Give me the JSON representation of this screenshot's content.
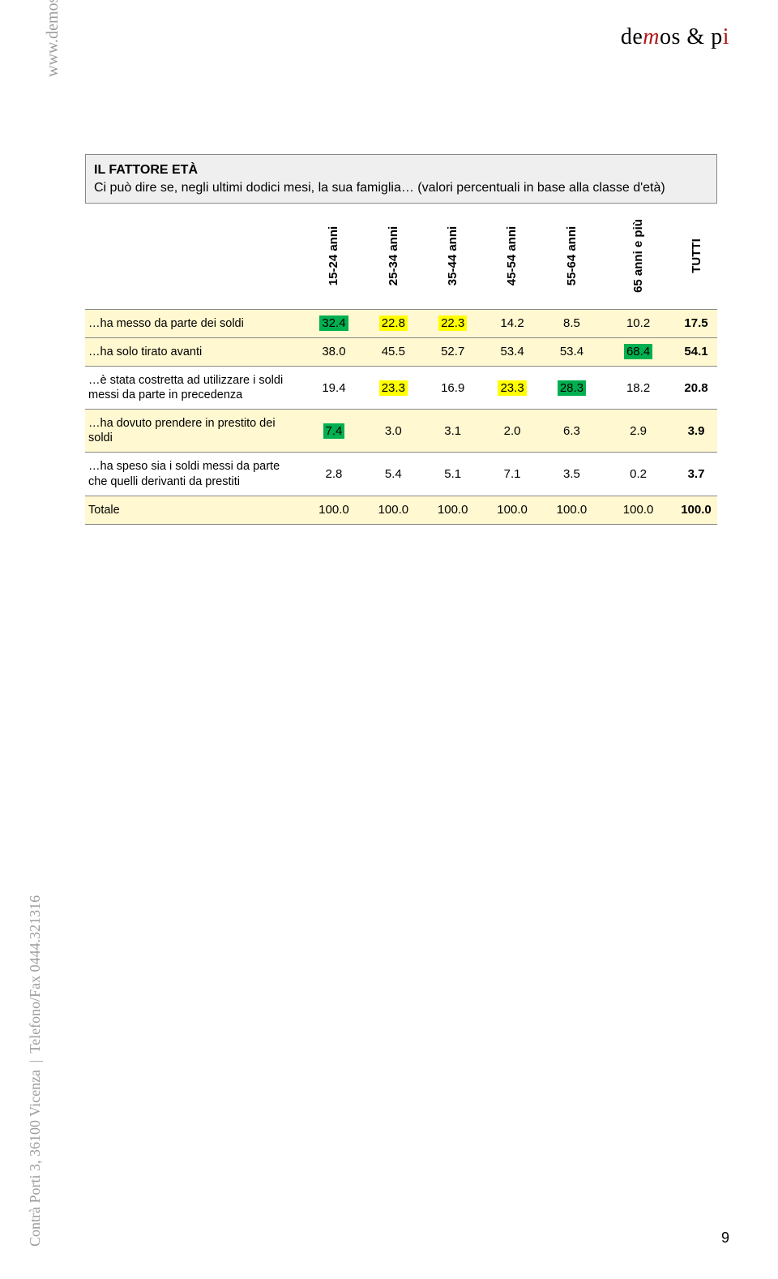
{
  "logo": {
    "text_pre": "de",
    "m": "m",
    "text_mid": "os & p",
    "i": "i",
    "brand_red": "#b01818"
  },
  "side": {
    "url": "www.demos.it",
    "address_parts": [
      "Contrà Porti 3, 36100 Vicenza",
      "Telefono/Fax 0444.321316"
    ]
  },
  "page_number": "9",
  "table": {
    "title_bold": "IL FATTORE ETÀ",
    "title_rest": "Ci può dire se, negli ultimi dodici mesi, la sua famiglia… (valori percentuali in base alla classe d'età)",
    "columns": [
      "15-24 anni",
      "25-34 anni",
      "35-44 anni",
      "45-54 anni",
      "55-64 anni",
      "65 anni e più",
      "TUTTI"
    ],
    "highlight_color": "#ffff00",
    "green_color": "#00b050",
    "row_stripe": "#fff8d0",
    "rows": [
      {
        "label": "…ha messo da parte dei soldi",
        "cells": [
          {
            "v": "32.4",
            "hl": "green"
          },
          {
            "v": "22.8",
            "hl": "yellow"
          },
          {
            "v": "22.3",
            "hl": "yellow"
          },
          {
            "v": "14.2"
          },
          {
            "v": "8.5"
          },
          {
            "v": "10.2"
          },
          {
            "v": "17.5",
            "bold": true
          }
        ],
        "stripe": true
      },
      {
        "label": "…ha solo tirato avanti",
        "cells": [
          {
            "v": "38.0"
          },
          {
            "v": "45.5"
          },
          {
            "v": "52.7"
          },
          {
            "v": "53.4"
          },
          {
            "v": "53.4"
          },
          {
            "v": "68.4",
            "hl": "green"
          },
          {
            "v": "54.1",
            "bold": true
          }
        ],
        "stripe": true
      },
      {
        "label": "…è stata costretta ad utilizzare i soldi messi da parte in precedenza",
        "cells": [
          {
            "v": "19.4"
          },
          {
            "v": "23.3",
            "hl": "yellow"
          },
          {
            "v": "16.9"
          },
          {
            "v": "23.3",
            "hl": "yellow"
          },
          {
            "v": "28.3",
            "hl": "green"
          },
          {
            "v": "18.2"
          },
          {
            "v": "20.8",
            "bold": true
          }
        ],
        "stripe": false
      },
      {
        "label": "…ha dovuto prendere in prestito dei soldi",
        "cells": [
          {
            "v": "7.4",
            "hl": "green"
          },
          {
            "v": "3.0"
          },
          {
            "v": "3.1"
          },
          {
            "v": "2.0"
          },
          {
            "v": "6.3"
          },
          {
            "v": "2.9"
          },
          {
            "v": "3.9",
            "bold": true
          }
        ],
        "stripe": true
      },
      {
        "label": "…ha speso sia i soldi messi da parte che quelli derivanti da prestiti",
        "cells": [
          {
            "v": "2.8"
          },
          {
            "v": "5.4"
          },
          {
            "v": "5.1"
          },
          {
            "v": "7.1"
          },
          {
            "v": "3.5"
          },
          {
            "v": "0.2"
          },
          {
            "v": "3.7",
            "bold": true
          }
        ],
        "stripe": false
      },
      {
        "label": "Totale",
        "cells": [
          {
            "v": "100.0"
          },
          {
            "v": "100.0"
          },
          {
            "v": "100.0"
          },
          {
            "v": "100.0"
          },
          {
            "v": "100.0"
          },
          {
            "v": "100.0"
          },
          {
            "v": "100.0",
            "bold": true
          }
        ],
        "stripe": true
      }
    ]
  }
}
